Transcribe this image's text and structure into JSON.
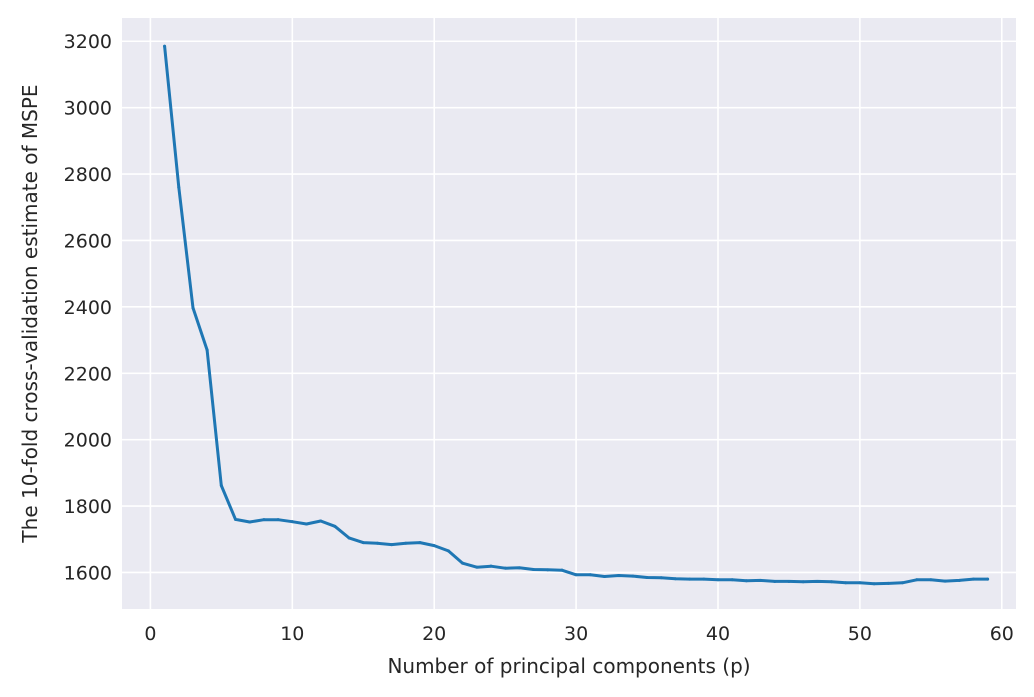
{
  "chart_data": {
    "type": "line",
    "title": "",
    "xlabel": "Number of principal components (p)",
    "ylabel": "The 10-fold cross-validation estimate of MSPE",
    "xlim": [
      -2,
      61
    ],
    "ylim": [
      1490,
      3270
    ],
    "xticks": [
      0,
      10,
      20,
      30,
      40,
      50,
      60
    ],
    "yticks": [
      1600,
      1800,
      2000,
      2200,
      2400,
      2600,
      2800,
      3000,
      3200
    ],
    "grid": true,
    "background_color": "#EAEAF2",
    "grid_color": "#FFFFFF",
    "series": [
      {
        "color": "#1F77B4",
        "x": [
          1,
          2,
          3,
          4,
          5,
          6,
          7,
          8,
          9,
          10,
          11,
          12,
          13,
          14,
          15,
          16,
          17,
          18,
          19,
          20,
          21,
          22,
          23,
          24,
          25,
          26,
          27,
          28,
          29,
          30,
          31,
          32,
          33,
          34,
          35,
          36,
          37,
          38,
          39,
          40,
          41,
          42,
          43,
          44,
          45,
          46,
          47,
          48,
          49,
          50,
          51,
          52,
          53,
          54,
          55,
          56,
          57,
          58,
          59
        ],
        "y": [
          3185,
          2760,
          2397,
          2270,
          1862,
          1760,
          1752,
          1759,
          1759,
          1753,
          1746,
          1755,
          1739,
          1704,
          1690,
          1688,
          1684,
          1688,
          1690,
          1681,
          1665,
          1628,
          1616,
          1619,
          1613,
          1614,
          1609,
          1608,
          1607,
          1593,
          1593,
          1588,
          1591,
          1589,
          1585,
          1584,
          1581,
          1580,
          1580,
          1578,
          1578,
          1575,
          1576,
          1573,
          1573,
          1572,
          1573,
          1572,
          1569,
          1569,
          1566,
          1567,
          1569,
          1578,
          1578,
          1574,
          1576,
          1580,
          1580
        ]
      }
    ]
  }
}
